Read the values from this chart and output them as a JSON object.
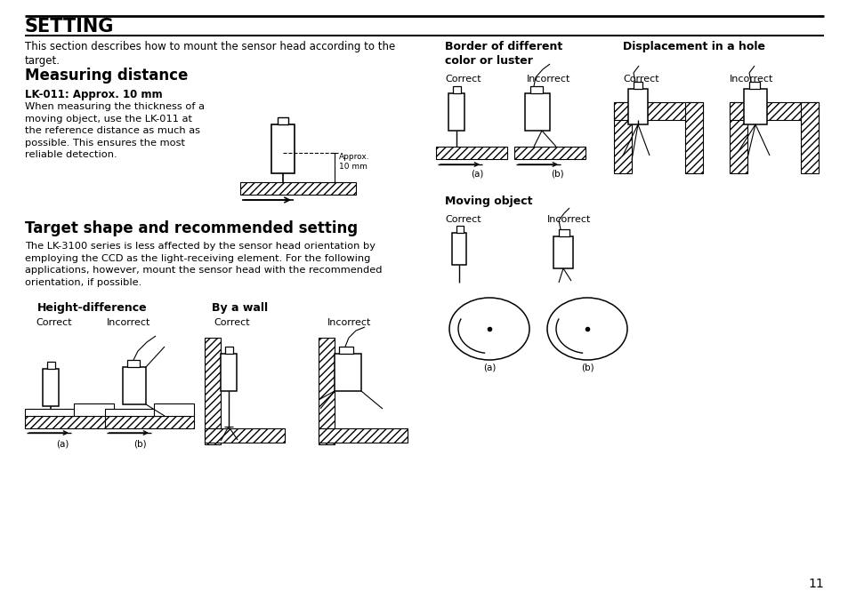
{
  "bg_color": "#ffffff",
  "title": "SETTING",
  "subtitle": "This section describes how to mount the sensor head according to the\ntarget.",
  "section1_title": "Measuring distance",
  "section1_sub": "LK-011: Approx. 10 mm",
  "section1_text": "When measuring the thickness of a\nmoving object, use the LK-011 at\nthe reference distance as much as\npossible. This ensures the most\nreliable detection.",
  "section2_title": "Target shape and recommended setting",
  "section2_text": "The LK-3100 series is less affected by the sensor head orientation by\nemploying the CCD as the light-receiving element. For the following\napplications, however, mount the sensor head with the recommended\norientation, if possible.",
  "height_diff_title": "Height-difference",
  "by_wall_title": "By a wall",
  "border_title": "Border of different\ncolor or luster",
  "displacement_title": "Displacement in a hole",
  "moving_obj_title": "Moving object",
  "correct": "Correct",
  "incorrect": "Incorrect",
  "approx_label": "Approx.\n10 mm",
  "page_number": "11",
  "label_a": "(a)",
  "label_b": "(b)"
}
